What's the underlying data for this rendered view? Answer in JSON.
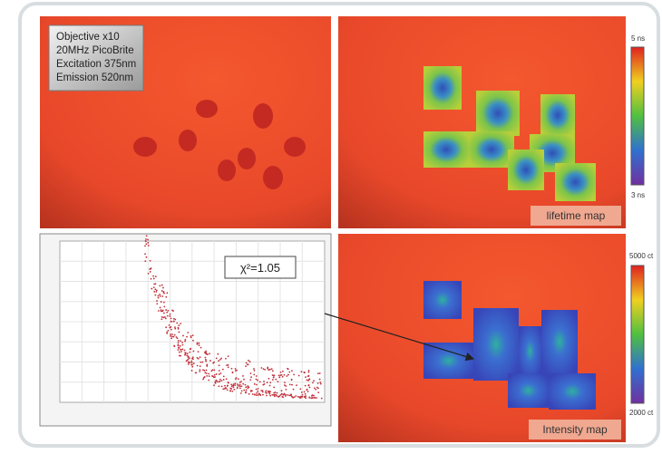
{
  "panels": {
    "brightfield": {
      "info_lines": [
        "Objective x10",
        "20MHz PicoBrite",
        "Excitation 375nm",
        "Emission 520nm"
      ]
    },
    "lifetime": {
      "label": "lifetime map",
      "scale_max": "5 ns",
      "scale_min": "3 ns"
    },
    "decay": {
      "chi_squared": "χ²=1.05"
    },
    "intensity": {
      "label": "Intensity map",
      "scale_max": "5000 ct",
      "scale_min": "2000 ct"
    }
  }
}
